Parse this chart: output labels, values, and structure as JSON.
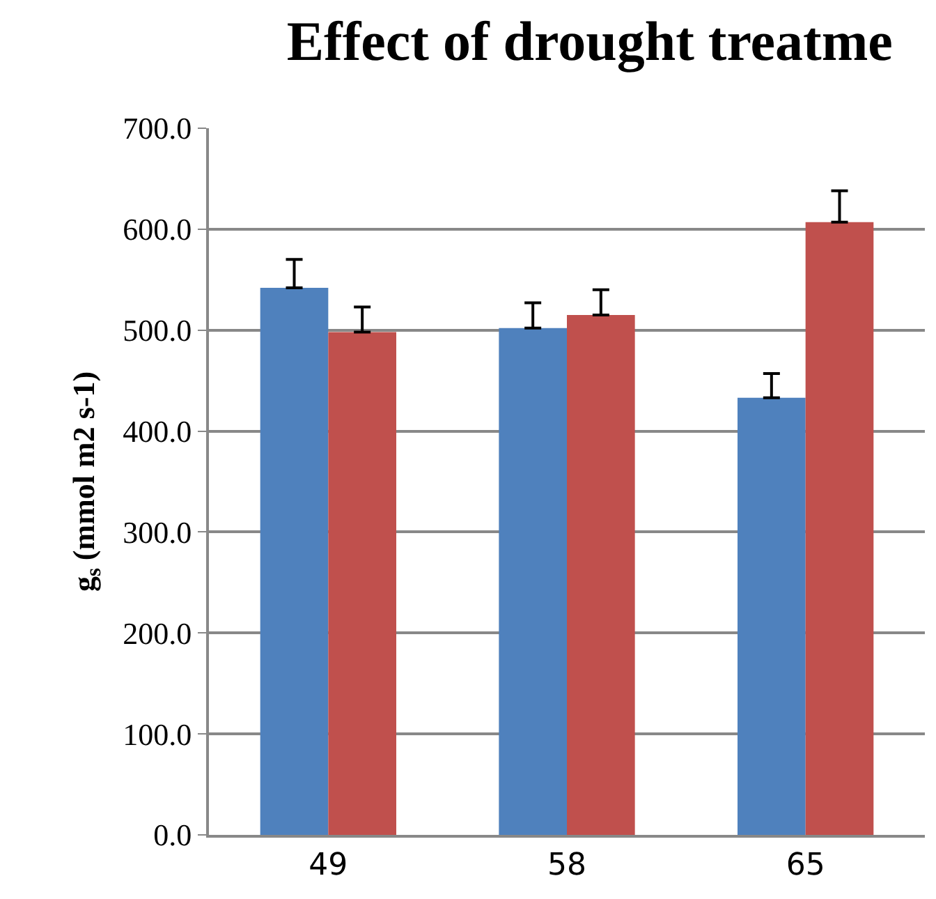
{
  "chart_data": {
    "type": "bar",
    "title": "Effect of drought treatme",
    "ylabel": "g$_{s}$ (mmol m2 s-1)",
    "categories": [
      "49",
      "58",
      "65"
    ],
    "series": [
      {
        "color": "#4f81bd",
        "values": [
          542,
          502,
          433
        ],
        "errors": [
          28,
          25,
          24
        ]
      },
      {
        "color": "#c0504d",
        "values": [
          498,
          515,
          607
        ],
        "errors": [
          25,
          25,
          31
        ]
      }
    ],
    "ylim": [
      0,
      700
    ],
    "yticks": [
      {
        "value": 0,
        "label": "0.0"
      },
      {
        "value": 100,
        "label": "100.0"
      },
      {
        "value": 200,
        "label": "200.0"
      },
      {
        "value": 300,
        "label": "300.0"
      },
      {
        "value": 400,
        "label": "400.0"
      },
      {
        "value": 500,
        "label": "500.0"
      },
      {
        "value": 600,
        "label": "600.0"
      },
      {
        "value": 700,
        "label": "700.0"
      }
    ],
    "grid": "y"
  }
}
